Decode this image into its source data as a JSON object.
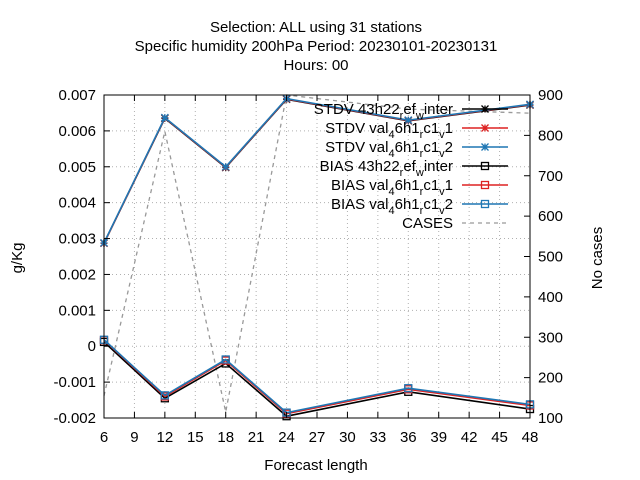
{
  "chart_data": {
    "type": "line",
    "title_lines": [
      "Selection: ALL using    31 stations",
      "Specific humidity 200hPa   Period: 20230101-20230131",
      "Hours:  00"
    ],
    "xlabel": "Forecast length",
    "ylabel": "g/Kg",
    "y2label": "No cases",
    "xlim": [
      6,
      48
    ],
    "ylim": [
      -0.002,
      0.007
    ],
    "y2lim": [
      100,
      900
    ],
    "x_ticks": [
      "6",
      "9",
      "12",
      "15",
      "18",
      "21",
      "24",
      "27",
      "30",
      "33",
      "36",
      "39",
      "42",
      "45",
      "48"
    ],
    "y_ticks": [
      "-0.002",
      "-0.001",
      "0",
      "0.001",
      "0.002",
      "0.003",
      "0.004",
      "0.005",
      "0.006",
      "0.007"
    ],
    "y2_ticks": [
      "100",
      "200",
      "300",
      "400",
      "500",
      "600",
      "700",
      "800",
      "900"
    ],
    "grid": true,
    "legend_position": "top-right",
    "x": [
      6,
      12,
      18,
      24,
      36,
      48
    ],
    "series": [
      {
        "name": "STDV 43h22_ref_winter",
        "name_parts": {
          "base": "STDV 43h22",
          "sub1": "r",
          "mid": "ef",
          "sub2": "w",
          "tail": "inter"
        },
        "axis": "y",
        "color": "#000000",
        "marker": "star",
        "dash": false,
        "values": [
          0.00287,
          0.00635,
          0.00498,
          0.00688,
          0.00628,
          0.00672
        ]
      },
      {
        "name": "STDV val_46h1_rc1_v1",
        "name_parts": {
          "base": "STDV val",
          "sub1": "4",
          "mid": "6h1",
          "sub2": "r",
          "tail": "c1",
          "sub3": "v",
          "tail2": "1"
        },
        "axis": "y",
        "color": "#dd2222",
        "marker": "star",
        "dash": false,
        "values": [
          0.00287,
          0.00636,
          0.00499,
          0.00689,
          0.00629,
          0.00673
        ]
      },
      {
        "name": "STDV val_46h1_rc1_v2",
        "name_parts": {
          "base": "STDV val",
          "sub1": "4",
          "mid": "6h1",
          "sub2": "r",
          "tail": "c1",
          "sub3": "v",
          "tail2": "2"
        },
        "axis": "y",
        "color": "#1f77b4",
        "marker": "star",
        "dash": false,
        "values": [
          0.00288,
          0.00637,
          0.005,
          0.0069,
          0.0063,
          0.00674
        ]
      },
      {
        "name": "BIAS 43h22_ref_winter",
        "name_parts": {
          "base": "BIAS 43h22",
          "sub1": "r",
          "mid": "ef",
          "sub2": "w",
          "tail": "inter"
        },
        "axis": "y",
        "color": "#000000",
        "marker": "square",
        "dash": false,
        "values": [
          0.00012,
          -0.00145,
          -0.00048,
          -0.00195,
          -0.00127,
          -0.00175
        ]
      },
      {
        "name": "BIAS val_46h1_rc1_v1",
        "name_parts": {
          "base": "BIAS val",
          "sub1": "4",
          "mid": "6h1",
          "sub2": "r",
          "tail": "c1",
          "sub3": "v",
          "tail2": "1"
        },
        "axis": "y",
        "color": "#dd2222",
        "marker": "square",
        "dash": false,
        "values": [
          0.00017,
          -0.0014,
          -0.0004,
          -0.00188,
          -0.0012,
          -0.00165
        ]
      },
      {
        "name": "BIAS val_46h1_rc1_v2",
        "name_parts": {
          "base": "BIAS val",
          "sub1": "4",
          "mid": "6h1",
          "sub2": "r",
          "tail": "c1",
          "sub3": "v",
          "tail2": "2"
        },
        "axis": "y",
        "color": "#1f77b4",
        "marker": "square",
        "dash": false,
        "values": [
          0.00018,
          -0.00137,
          -0.00037,
          -0.00185,
          -0.00117,
          -0.00162
        ]
      },
      {
        "name": "CASES",
        "name_parts": {
          "base": "CASES"
        },
        "axis": "y2",
        "color": "#999999",
        "marker": "none",
        "dash": true,
        "values": [
          155,
          810,
          115,
          900,
          865,
          855
        ]
      }
    ]
  }
}
